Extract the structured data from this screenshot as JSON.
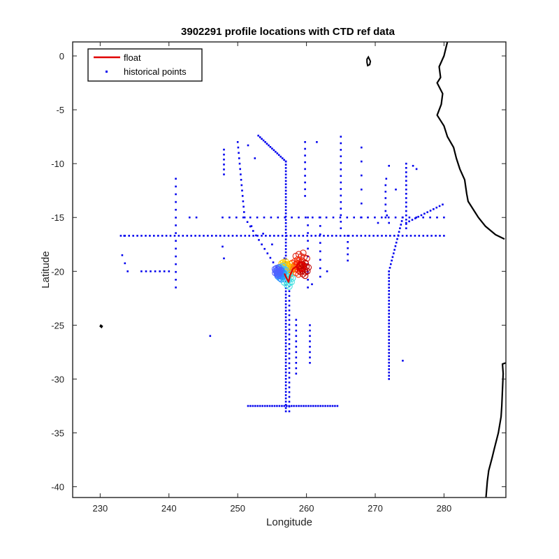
{
  "chart_data": {
    "type": "scatter",
    "title": "3902291 profile locations with CTD ref data",
    "xlabel": "Longitude",
    "ylabel": "Latitude",
    "xlim": [
      226,
      289
    ],
    "ylim": [
      -41,
      1.3
    ],
    "xticks": [
      230,
      240,
      250,
      260,
      270,
      280
    ],
    "yticks": [
      0,
      -5,
      -10,
      -15,
      -20,
      -25,
      -30,
      -35,
      -40
    ],
    "xtick_labels": [
      "230",
      "240",
      "250",
      "260",
      "270",
      "280"
    ],
    "ytick_labels": [
      "0",
      "-5",
      "-10",
      "-15",
      "-20",
      "-25",
      "-30",
      "-35",
      "-40"
    ],
    "grid": false,
    "legend": {
      "placement": "top-left",
      "entries": [
        {
          "label": "float",
          "color": "#e00000",
          "marker": "line"
        },
        {
          "label": "historical points",
          "color": "#0000ee",
          "marker": "dot"
        }
      ]
    },
    "colors": {
      "historical": "#0000ee",
      "float": "#e00000",
      "coast": "#000000"
    },
    "historical_segments": [
      {
        "x": [
          233,
          280
        ],
        "y": [
          -16.7,
          -16.7
        ],
        "step": 0.6
      },
      {
        "x": [
          257,
          257
        ],
        "y": [
          -9.8,
          -33.0
        ],
        "step": 0.3
      },
      {
        "x": [
          251.5,
          264.5
        ],
        "y": [
          -32.5,
          -32.5
        ],
        "step": 0.35
      },
      {
        "x": [
          247.8,
          280
        ],
        "y": [
          -15,
          -15
        ],
        "step": 1.0
      },
      {
        "x": [
          241,
          241
        ],
        "y": [
          -11.4,
          -21.5
        ],
        "step": 0.7
      },
      {
        "x": [
          253,
          257
        ],
        "y": [
          -7.4,
          -9.8
        ],
        "step": 0.3
      },
      {
        "x": [
          248,
          248
        ],
        "y": [
          -8.7,
          -11.0
        ],
        "step": 0.45
      },
      {
        "x": [
          250,
          251
        ],
        "y": [
          -8.0,
          -15.0
        ],
        "step": 0.5
      },
      {
        "x": [
          251,
          256
        ],
        "y": [
          -15.0,
          -20.0
        ],
        "step": 0.6
      },
      {
        "x": [
          259.8,
          259.8
        ],
        "y": [
          -8.0,
          -13.0
        ],
        "step": 0.6
      },
      {
        "x": [
          260.2,
          260.2
        ],
        "y": [
          -15.0,
          -21.5
        ],
        "step": 0.7
      },
      {
        "x": [
          262,
          262
        ],
        "y": [
          -15.0,
          -20.5
        ],
        "step": 0.8
      },
      {
        "x": [
          265,
          265
        ],
        "y": [
          -7.5,
          -16.0
        ],
        "step": 0.6
      },
      {
        "x": [
          266,
          266
        ],
        "y": [
          -16.7,
          -19.0
        ],
        "step": 0.6
      },
      {
        "x": [
          268,
          268
        ],
        "y": [
          -8.5,
          -15.0
        ],
        "step": 1.2
      },
      {
        "x": [
          272,
          272
        ],
        "y": [
          -20.0,
          -30.0
        ],
        "step": 0.3
      },
      {
        "x": [
          274,
          272
        ],
        "y": [
          -15.0,
          -20.0
        ],
        "step": 0.35
      },
      {
        "x": [
          274.5,
          274.5
        ],
        "y": [
          -10.0,
          -16.0
        ],
        "step": 0.4
      },
      {
        "x": [
          274.5,
          279.8
        ],
        "y": [
          -15.5,
          -13.8
        ],
        "step": 0.45
      },
      {
        "x": [
          271.5,
          271.5
        ],
        "y": [
          -12.0,
          -15.0
        ],
        "step": 0.6
      },
      {
        "x": [
          258.5,
          258.5
        ],
        "y": [
          -24.5,
          -29.5
        ],
        "step": 0.5
      },
      {
        "x": [
          260.5,
          260.5
        ],
        "y": [
          -25.0,
          -28.5
        ],
        "step": 0.5
      },
      {
        "x": [
          257.5,
          257.5
        ],
        "y": [
          -20.5,
          -33.0
        ],
        "step": 0.45
      },
      {
        "x": [
          233.2,
          234
        ],
        "y": [
          -18.5,
          -20.0
        ],
        "step": 0.7
      },
      {
        "x": [
          236,
          240
        ],
        "y": [
          -20.0,
          -20.0
        ],
        "step": 0.7
      }
    ],
    "historical_points": [
      [
        252,
        -15.8
      ],
      [
        251.5,
        -8.3
      ],
      [
        252.5,
        -9.5
      ],
      [
        247.8,
        -17.7
      ],
      [
        248,
        -18.8
      ],
      [
        246,
        -26.0
      ],
      [
        274,
        -28.3
      ],
      [
        272,
        -15.5
      ],
      [
        273,
        -12.4
      ],
      [
        271.7,
        -14.8
      ],
      [
        270.4,
        -15.5
      ],
      [
        276,
        -10.5
      ],
      [
        275.5,
        -10.2
      ],
      [
        272,
        -10.2
      ],
      [
        271.6,
        -11.4
      ],
      [
        243,
        -15.0
      ],
      [
        244,
        -15.0
      ],
      [
        233.5,
        -16.7
      ],
      [
        253.7,
        -16.5
      ],
      [
        255,
        -17.5
      ],
      [
        256.8,
        -18.8
      ],
      [
        263,
        -20.0
      ],
      [
        260.8,
        -21.2
      ],
      [
        261.5,
        -8.0
      ]
    ],
    "float_track": [
      [
        258.6,
        -19.5
      ],
      [
        259.0,
        -19.1
      ],
      [
        259.6,
        -19.3
      ],
      [
        259.8,
        -19.7
      ],
      [
        259.3,
        -20.0
      ],
      [
        258.7,
        -19.8
      ],
      [
        258.6,
        -19.5
      ],
      [
        258.0,
        -19.8
      ],
      [
        257.6,
        -20.4
      ],
      [
        257.4,
        -21.0
      ],
      [
        257.0,
        -20.5
      ],
      [
        256.8,
        -20.2
      ]
    ],
    "float_profile_clouds": [
      {
        "x": 259.2,
        "y": -19.0,
        "r": 0.9,
        "color": "#e02010"
      },
      {
        "x": 258.6,
        "y": -19.6,
        "r": 0.8,
        "color": "#ff3000"
      },
      {
        "x": 259.6,
        "y": -19.8,
        "r": 0.7,
        "color": "#c00000"
      },
      {
        "x": 257.4,
        "y": -19.8,
        "r": 0.6,
        "color": "#ff9000"
      },
      {
        "x": 256.8,
        "y": -19.5,
        "r": 0.5,
        "color": "#ffd000"
      },
      {
        "x": 256.4,
        "y": -20.0,
        "r": 0.6,
        "color": "#40c0ff"
      },
      {
        "x": 257.3,
        "y": -20.8,
        "r": 0.7,
        "color": "#40e0e0"
      },
      {
        "x": 256.2,
        "y": -20.3,
        "r": 0.5,
        "color": "#2090ff"
      },
      {
        "x": 255.8,
        "y": -20.0,
        "r": 0.45,
        "color": "#5060ff"
      }
    ],
    "coastline_main": [
      [
        280.5,
        1.3
      ],
      [
        280.3,
        0.8
      ],
      [
        280.0,
        0.0
      ],
      [
        279.3,
        -1.0
      ],
      [
        279.5,
        -2.0
      ],
      [
        279.0,
        -2.5
      ],
      [
        279.8,
        -3.5
      ],
      [
        279.6,
        -4.5
      ],
      [
        279.0,
        -5.5
      ],
      [
        280.0,
        -6.5
      ],
      [
        280.5,
        -7.5
      ],
      [
        281.4,
        -8.5
      ],
      [
        281.8,
        -9.5
      ],
      [
        282.3,
        -10.5
      ],
      [
        283.0,
        -11.5
      ],
      [
        283.3,
        -12.8
      ],
      [
        283.5,
        -13.5
      ],
      [
        284.5,
        -14.5
      ],
      [
        285.0,
        -15.0
      ],
      [
        286.0,
        -15.8
      ],
      [
        287.5,
        -16.6
      ],
      [
        288.8,
        -17.0
      ]
    ],
    "coastline_south": [
      [
        289.0,
        -28.5
      ],
      [
        288.5,
        -28.6
      ],
      [
        288.6,
        -29.5
      ],
      [
        288.5,
        -31.0
      ],
      [
        288.4,
        -32.5
      ],
      [
        288.3,
        -33.5
      ],
      [
        287.9,
        -35.0
      ],
      [
        287.3,
        -36.5
      ],
      [
        287.0,
        -37.3
      ],
      [
        286.5,
        -38.5
      ],
      [
        286.3,
        -39.5
      ],
      [
        286.1,
        -41.0
      ]
    ],
    "islands": [
      [
        [
          268.8,
          -0.3
        ],
        [
          269.0,
          -0.1
        ],
        [
          269.3,
          -0.5
        ],
        [
          269.2,
          -0.8
        ],
        [
          268.9,
          -0.9
        ],
        [
          268.8,
          -0.6
        ]
      ],
      [
        [
          230.1,
          -25.0
        ],
        [
          230.3,
          -25.1
        ],
        [
          230.2,
          -25.2
        ],
        [
          230.0,
          -25.1
        ]
      ]
    ]
  }
}
